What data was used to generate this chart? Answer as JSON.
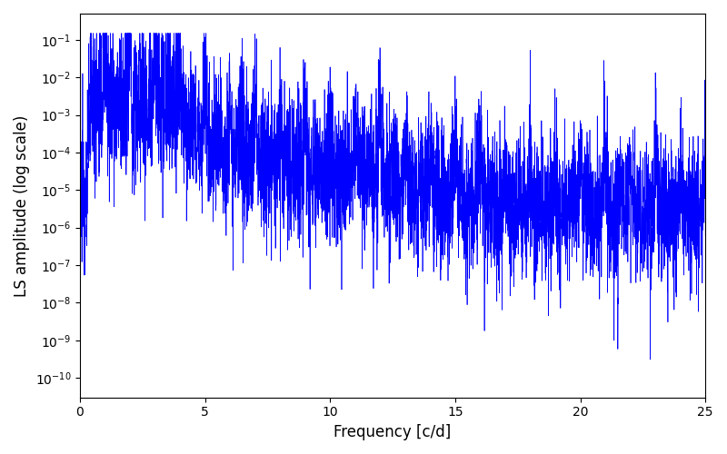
{
  "title": "",
  "xlabel": "Frequency [c/d]",
  "ylabel": "LS amplitude (log scale)",
  "xlim": [
    0,
    25
  ],
  "ylim": [
    3e-11,
    0.5
  ],
  "line_color": "blue",
  "line_width": 0.5,
  "background_color": "#ffffff",
  "figsize": [
    8.0,
    5.0
  ],
  "dpi": 100,
  "seed": 12345,
  "n_points": 5000,
  "freq_max": 25.0
}
